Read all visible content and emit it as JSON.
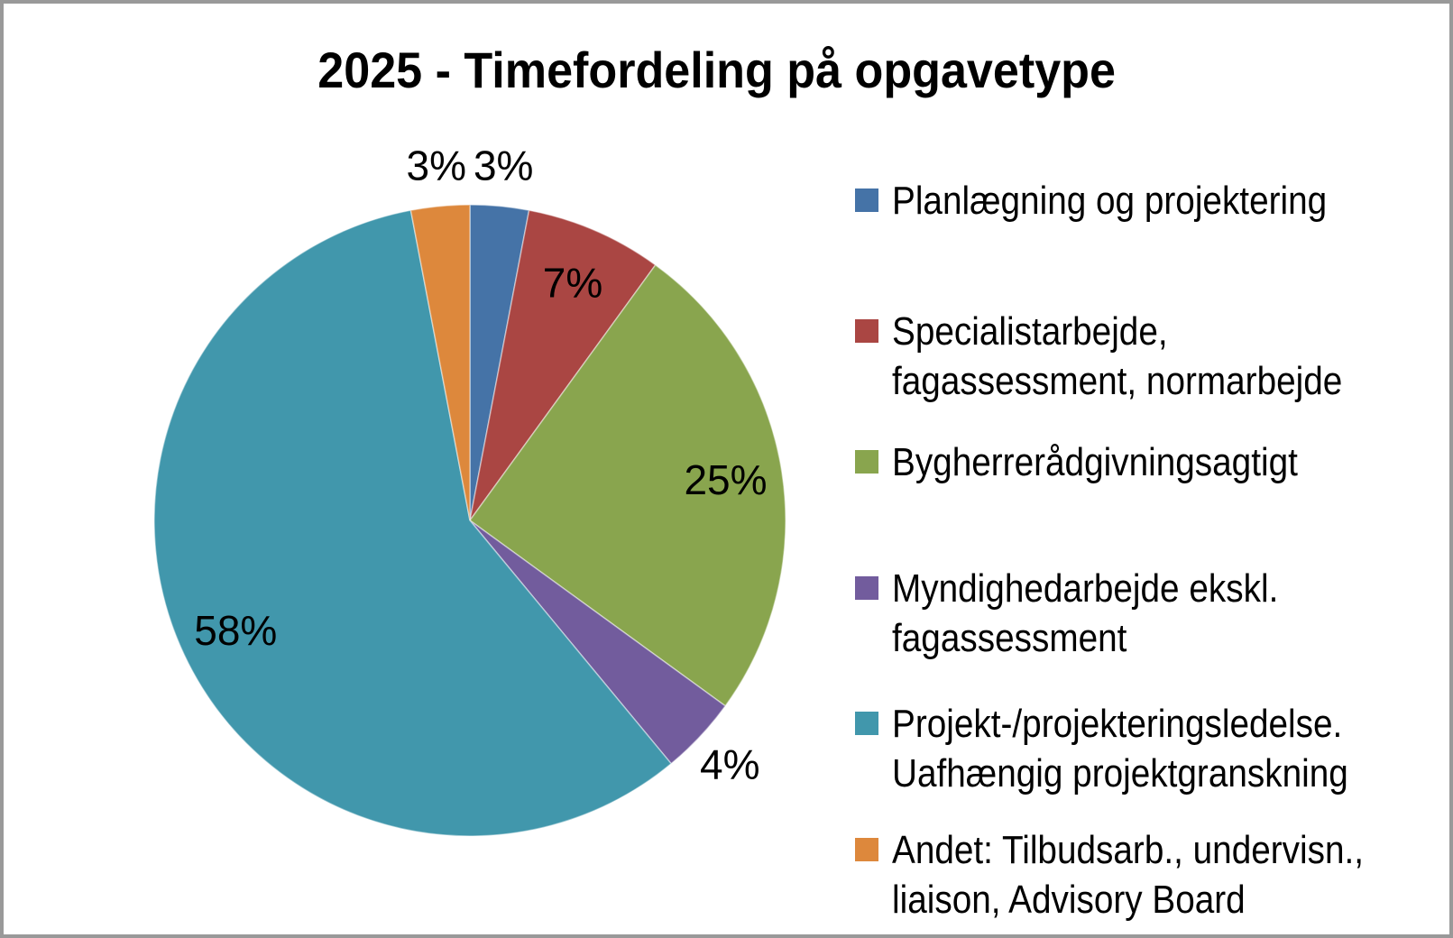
{
  "title": "2025 - Timefordeling på opgavetype",
  "frame": {
    "border_color": "#999999",
    "background_color": "#ffffff"
  },
  "chart_data": {
    "type": "pie",
    "title": "2025 - Timefordeling på opgavetype",
    "categories": [
      "Planlægning og projektering",
      "Specialistarbejde, fagassessment, normarbejde",
      "Bygherrerådgivningsagtigt",
      "Myndighedarbejde ekskl. fagassessment",
      "Projekt-/projekteringsledelse. Uafhængig projektgranskning",
      "Andet: Tilbudsarb., undervisn., liaison, Advisory Board"
    ],
    "values": [
      3,
      7,
      25,
      4,
      58,
      3
    ],
    "labels": [
      "3%",
      "7%",
      "25%",
      "4%",
      "58%",
      "3%"
    ],
    "colors": [
      "#4573A7",
      "#AA4643",
      "#89A54E",
      "#725C9D",
      "#4197AC",
      "#DD883C"
    ],
    "label_placement": [
      "outside",
      "inside",
      "inside",
      "outside",
      "inside",
      "outside"
    ],
    "start_angle": 0,
    "direction": "clockwise",
    "grid": false,
    "legend_position": "right",
    "legend": [
      {
        "label": "Planlægning og projektering",
        "color": "#4573A7"
      },
      {
        "label": "Specialistarbejde,\nfagassessment, normarbejde",
        "color": "#AA4643"
      },
      {
        "label": "Bygherrerådgivningsagtigt",
        "color": "#89A54E"
      },
      {
        "label": "Myndighedarbejde ekskl.\nfagassessment",
        "color": "#725C9D"
      },
      {
        "label": "Projekt-/projekteringsledelse.\nUafhængig projektgranskning",
        "color": "#4197AC"
      },
      {
        "label": "Andet: Tilbudsarb., undervisn.,\nliaison, Advisory Board",
        "color": "#DD883C"
      }
    ]
  }
}
